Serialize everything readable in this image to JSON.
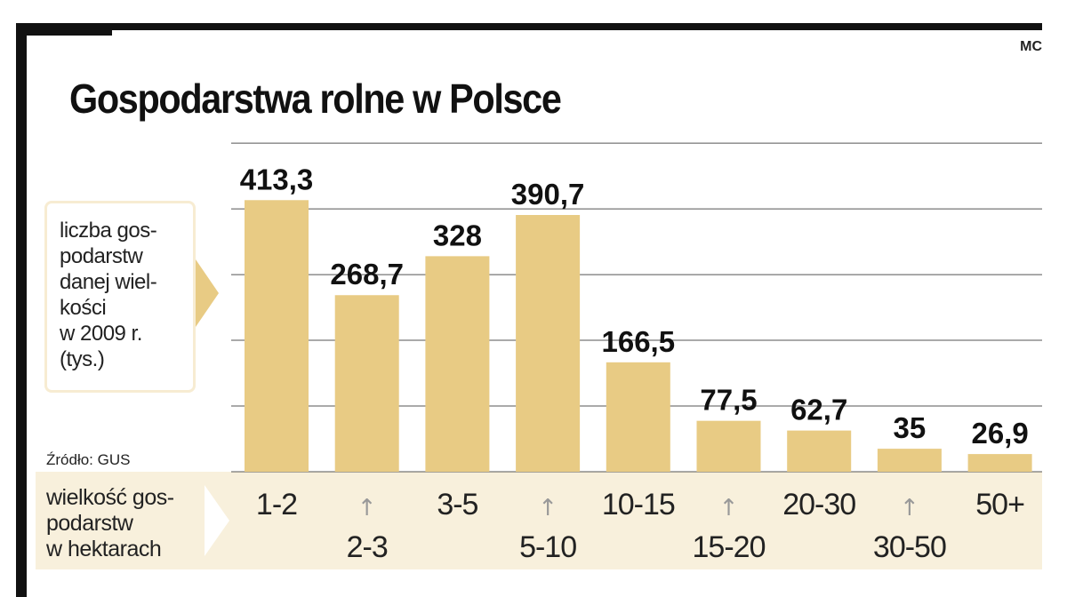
{
  "credit": "MC",
  "title": "Gospodarstwa rolne w Polsce",
  "legend": "liczba gos-\npodarstw\ndanej wiel-\nkości\nw 2009 r.\n(tys.)",
  "source": "Źródło: GUS",
  "x_axis_label": "wielkość gos-\npodarstw\nw hektarach",
  "colors": {
    "bar": "#e8cb84",
    "band": "#f8f0dc",
    "grid": "#555555",
    "frame": "#111111"
  },
  "chart_data": {
    "type": "bar",
    "title": "Gospodarstwa rolne w Polsce",
    "xlabel": "wielkość gospodarstw w hektarach",
    "ylabel": "liczba gospodarstw danej wielkości w 2009 r. (tys.)",
    "categories": [
      "1-2",
      "2-3",
      "3-5",
      "5-10",
      "10-15",
      "15-20",
      "20-30",
      "30-50",
      "50+"
    ],
    "values": [
      413.3,
      268.7,
      328,
      390.7,
      166.5,
      77.5,
      62.7,
      35,
      26.9
    ],
    "value_labels": [
      "413,3",
      "268,7",
      "328",
      "390,7",
      "166,5",
      "77,5",
      "62,7",
      "35",
      "26,9"
    ],
    "ylim": [
      0,
      500
    ],
    "grid": true,
    "up_arrow_icon": "↑"
  }
}
